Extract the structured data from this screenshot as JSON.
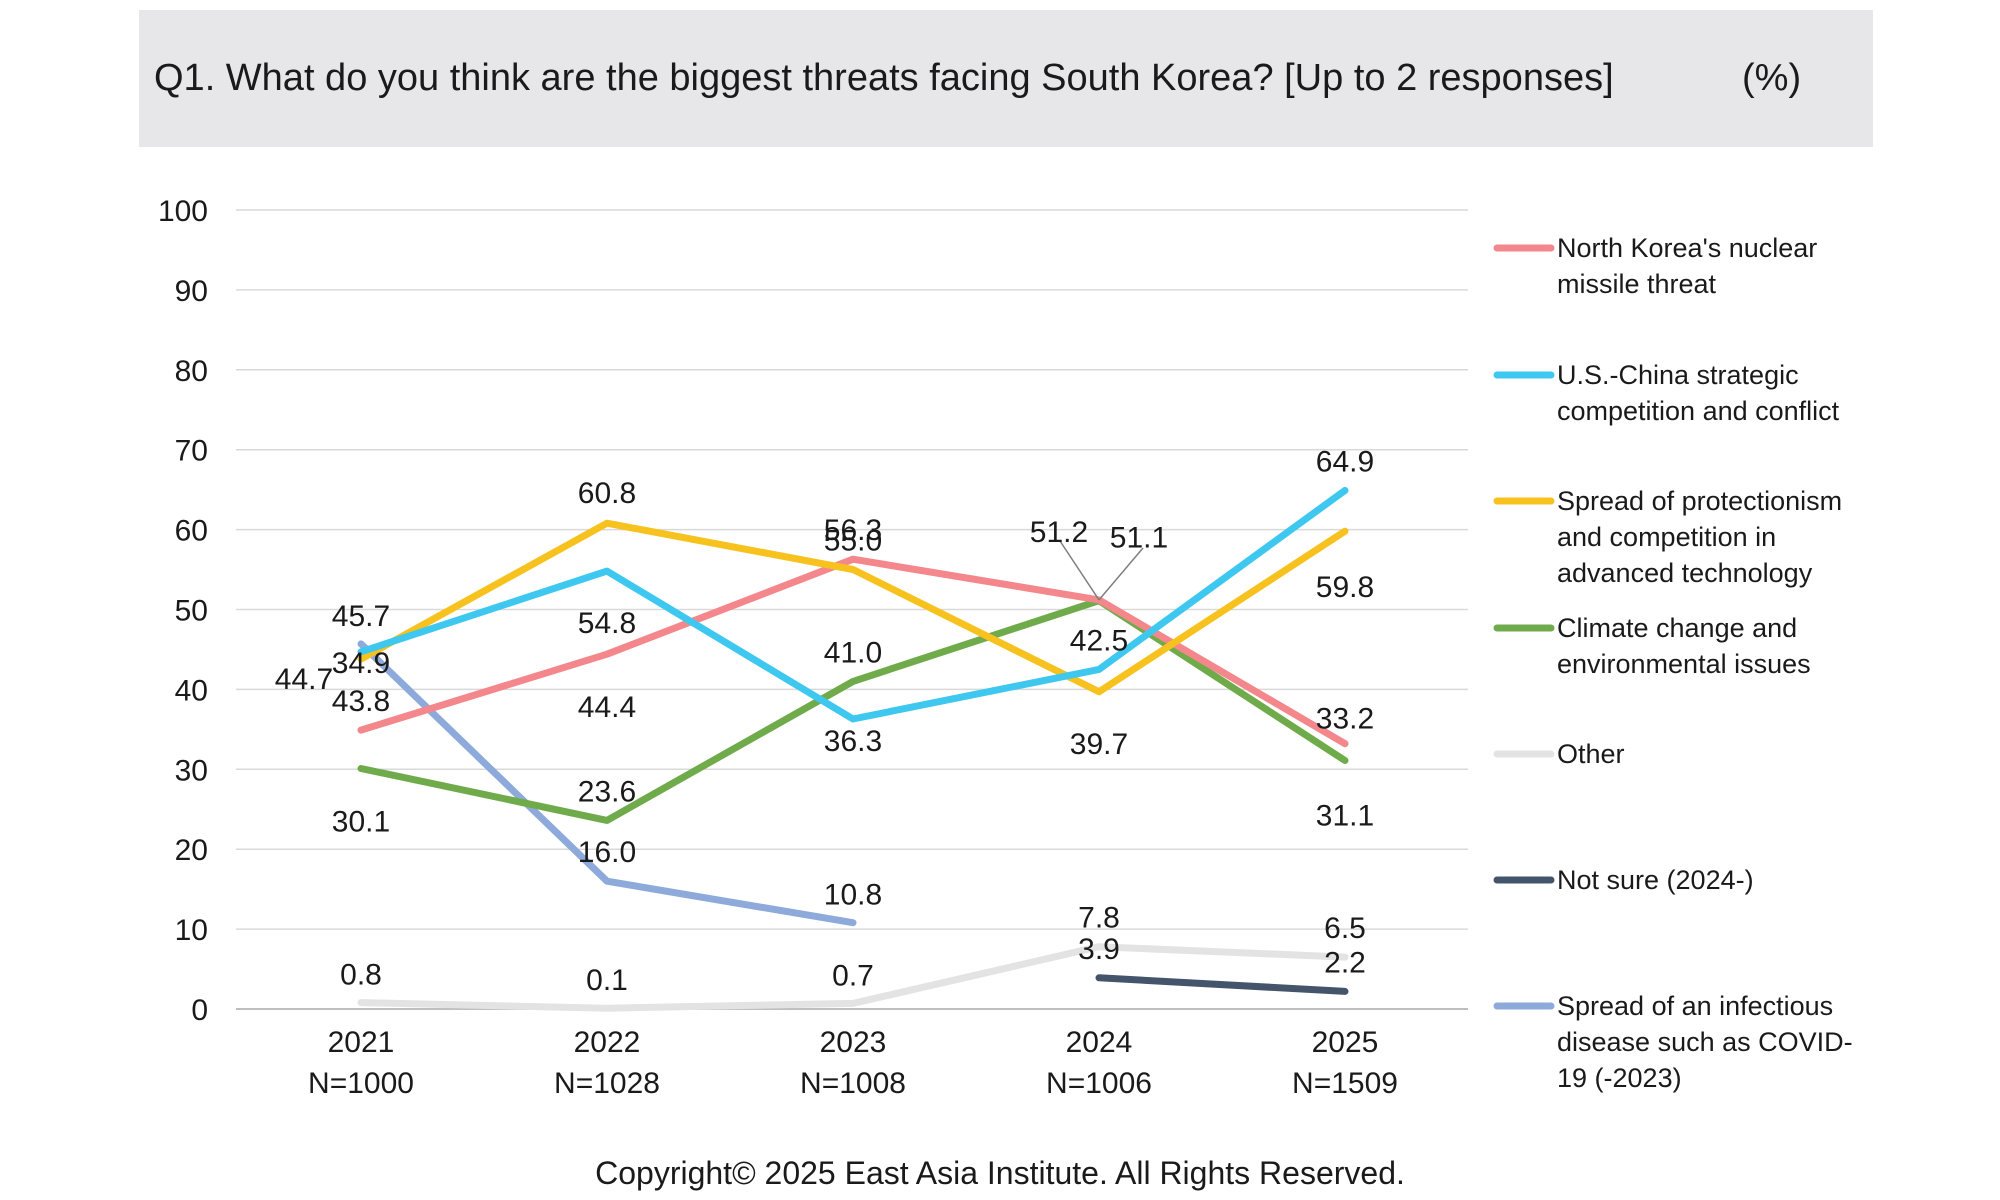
{
  "title": "Q1. What do you think are the biggest threats facing South Korea? [Up to 2 responses]",
  "unit_label": "(%)",
  "copyright": "Copyright© 2025 East Asia Institute. All Rights Reserved.",
  "chart_data": {
    "type": "line",
    "categories": [
      "2021",
      "2022",
      "2023",
      "2024",
      "2025"
    ],
    "category_sublabels": [
      "N=1000",
      "N=1028",
      "N=1008",
      "N=1006",
      "N=1509"
    ],
    "ylim": [
      0,
      100
    ],
    "yticks": [
      0,
      10,
      20,
      30,
      40,
      50,
      60,
      70,
      80,
      90,
      100
    ],
    "grid": true,
    "legend_position": "right",
    "series": [
      {
        "name": "North Korea's nuclear missile threat",
        "color": "#f4878b",
        "values": [
          34.9,
          44.4,
          56.3,
          51.2,
          33.2
        ],
        "labels": [
          "34.9",
          "44.4",
          "56.3",
          "51.2",
          "33.2"
        ]
      },
      {
        "name": "U.S.-China strategic competition and conflict",
        "color": "#3ec8f0",
        "values": [
          44.7,
          54.8,
          36.3,
          42.5,
          64.9
        ],
        "labels": [
          "44.7",
          "54.8",
          "36.3",
          "42.5",
          "64.9"
        ]
      },
      {
        "name": "Spread of protectionism and competition in advanced technology",
        "color": "#f7c21e",
        "values": [
          43.8,
          60.8,
          55.0,
          39.7,
          59.8
        ],
        "labels": [
          "43.8",
          "60.8",
          "55.0",
          "39.7",
          "59.8"
        ]
      },
      {
        "name": "Climate change and environmental issues",
        "color": "#70ab4b",
        "values": [
          30.1,
          23.6,
          41.0,
          51.1,
          31.1
        ],
        "labels": [
          "30.1",
          "23.6",
          "41.0",
          "51.1",
          "31.1"
        ]
      },
      {
        "name": "Other",
        "color": "#e3e3e3",
        "values": [
          0.8,
          0.1,
          0.7,
          7.8,
          6.5
        ],
        "labels": [
          "0.8",
          "0.1",
          "0.7",
          "7.8",
          "6.5"
        ]
      },
      {
        "name": "Not sure (2024-)",
        "color": "#44546a",
        "values": [
          null,
          null,
          null,
          3.9,
          2.2
        ],
        "labels": [
          "",
          "",
          "",
          "3.9",
          "2.2"
        ]
      },
      {
        "name": "Spread of an infectious disease such as COVID-19 (-2023)",
        "color": "#8eaadb",
        "values": [
          45.7,
          16.0,
          10.8,
          null,
          null
        ],
        "labels": [
          "45.7",
          "16.0",
          "10.8",
          "",
          ""
        ]
      }
    ]
  }
}
